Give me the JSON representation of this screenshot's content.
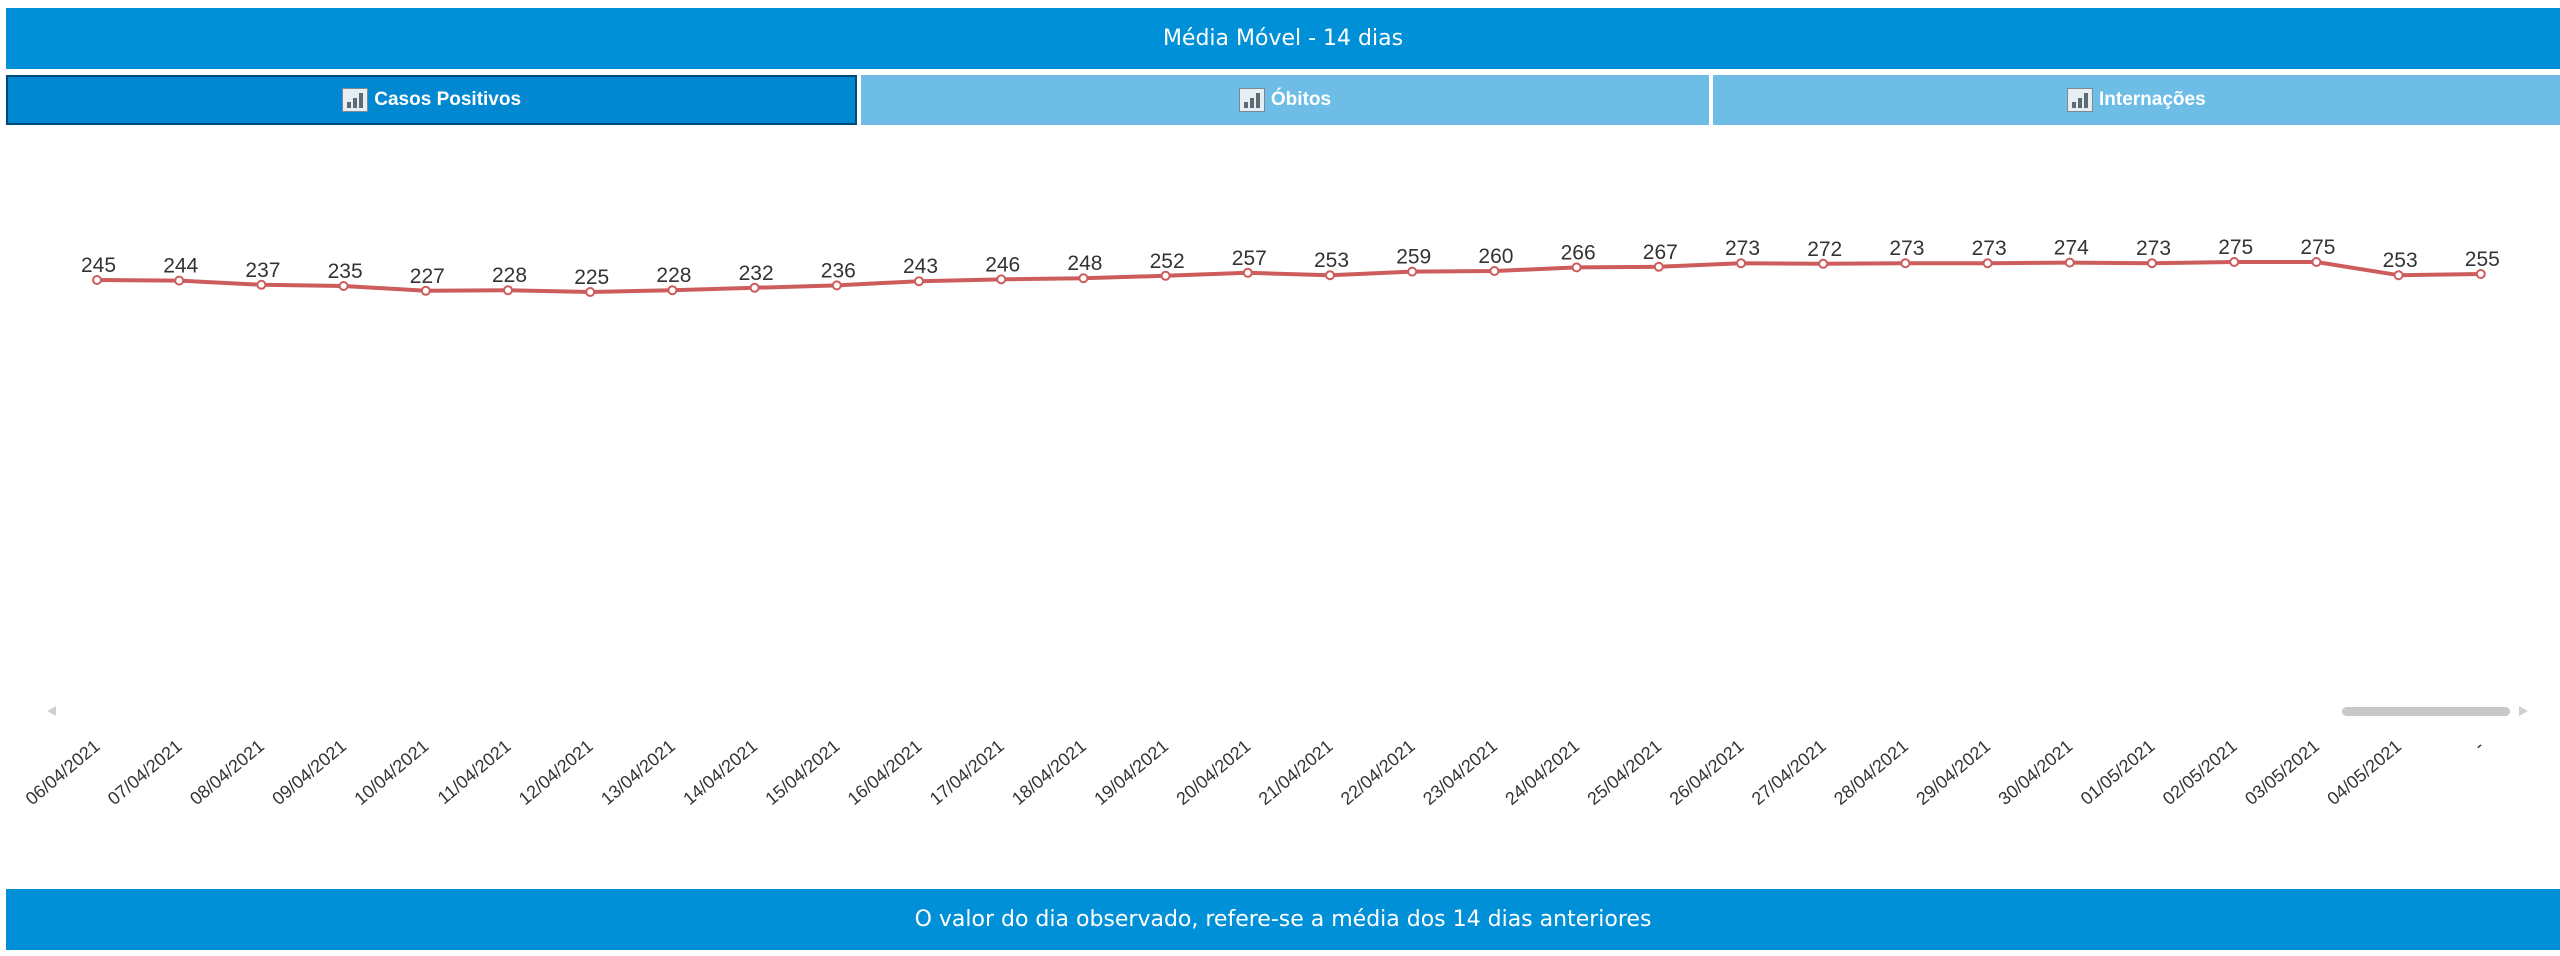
{
  "header": {
    "title": "Média Móvel - 14 dias"
  },
  "tabs": [
    {
      "label": "Casos Positivos",
      "icon": "bar-chart-icon",
      "active": true
    },
    {
      "label": "Óbitos",
      "icon": "bar-chart-icon",
      "active": false
    },
    {
      "label": "Internações",
      "icon": "bar-chart-icon",
      "active": false
    }
  ],
  "footer": {
    "note": "O valor do dia observado, refere-se a média dos 14 dias anteriores"
  },
  "colors": {
    "header_bg": "#0090d8",
    "tab_active": "#0288d1",
    "tab_inactive": "#6dbde6",
    "line": "#cd5c5c"
  },
  "chart_data": {
    "type": "line",
    "categories": [
      "06/04/2021",
      "07/04/2021",
      "08/04/2021",
      "09/04/2021",
      "10/04/2021",
      "11/04/2021",
      "12/04/2021",
      "13/04/2021",
      "14/04/2021",
      "15/04/2021",
      "16/04/2021",
      "17/04/2021",
      "18/04/2021",
      "19/04/2021",
      "20/04/2021",
      "21/04/2021",
      "22/04/2021",
      "23/04/2021",
      "24/04/2021",
      "25/04/2021",
      "26/04/2021",
      "27/04/2021",
      "28/04/2021",
      "29/04/2021",
      "30/04/2021",
      "01/05/2021",
      "02/05/2021",
      "03/05/2021",
      "04/05/2021",
      "-"
    ],
    "series": [
      {
        "values": [
          245,
          244,
          237,
          235,
          227,
          228,
          225,
          228,
          232,
          236,
          243,
          246,
          248,
          252,
          257,
          253,
          259,
          260,
          266,
          267,
          273,
          272,
          273,
          273,
          274,
          273,
          275,
          275,
          253,
          255
        ]
      }
    ],
    "title": "",
    "xlabel": "",
    "ylabel": "",
    "grid": false,
    "data_labels": true
  }
}
